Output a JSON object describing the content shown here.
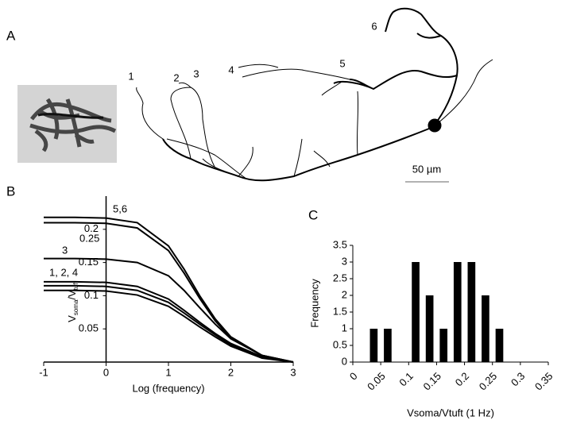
{
  "panel_labels": [
    "A",
    "B",
    "C"
  ],
  "neuron": {
    "labels": [
      "1",
      "2",
      "3",
      "4",
      "5",
      "6"
    ],
    "scale_label": "50 µm"
  },
  "chart_data": [
    {
      "type": "line",
      "x_label": "Log (frequency)",
      "y_label_parts": [
        "V",
        "soma",
        "/V",
        "tuft"
      ],
      "x": [
        -1,
        -0.5,
        0,
        0.5,
        1,
        1.25,
        1.5,
        1.75,
        2,
        2.5,
        3
      ],
      "series": [
        {
          "color": "#000000",
          "values": [
            0.218,
            0.218,
            0.217,
            0.21,
            0.175,
            0.14,
            0.1,
            0.065,
            0.038,
            0.01,
            0
          ]
        },
        {
          "color": "#000000",
          "values": [
            0.21,
            0.21,
            0.209,
            0.202,
            0.168,
            0.134,
            0.096,
            0.062,
            0.036,
            0.01,
            0
          ]
        },
        {
          "color": "#000000",
          "values": [
            0.156,
            0.156,
            0.155,
            0.15,
            0.13,
            0.108,
            0.082,
            0.057,
            0.035,
            0.01,
            0
          ]
        },
        {
          "color": "#000000",
          "values": [
            0.121,
            0.121,
            0.12,
            0.114,
            0.095,
            0.078,
            0.06,
            0.043,
            0.028,
            0.008,
            0
          ]
        },
        {
          "color": "#000000",
          "values": [
            0.115,
            0.115,
            0.114,
            0.108,
            0.09,
            0.074,
            0.057,
            0.041,
            0.026,
            0.007,
            0
          ]
        },
        {
          "color": "#000000",
          "values": [
            0.108,
            0.108,
            0.107,
            0.101,
            0.084,
            0.069,
            0.053,
            0.038,
            0.024,
            0.006,
            0
          ]
        }
      ],
      "annotations": [
        "5,6",
        "0.25",
        "3",
        "1, 2, 4"
      ],
      "xlim": [
        -1,
        3
      ],
      "xticks": [
        -1,
        0,
        1,
        2,
        3
      ],
      "ylim": [
        0,
        0.25
      ],
      "yticks": [
        0.05,
        0.1,
        0.15,
        0.2
      ]
    },
    {
      "type": "histogram",
      "x_label": "Vsoma/Vtuft (1 Hz)",
      "y_label": "Frequency",
      "bins": [
        0.025,
        0.05,
        0.075,
        0.1,
        0.125,
        0.15,
        0.175,
        0.2,
        0.225,
        0.25,
        0.275
      ],
      "values": [
        1,
        1,
        0,
        3,
        2,
        1,
        3,
        3,
        2,
        1
      ],
      "color": "#000000",
      "xlim": [
        0,
        0.35
      ],
      "xticks": [
        0,
        0.05,
        0.1,
        0.15,
        0.2,
        0.25,
        0.3,
        0.35
      ],
      "ylim": [
        0,
        3.5
      ],
      "yticks": [
        0,
        0.5,
        1,
        1.5,
        2,
        2.5,
        3,
        3.5
      ]
    }
  ]
}
